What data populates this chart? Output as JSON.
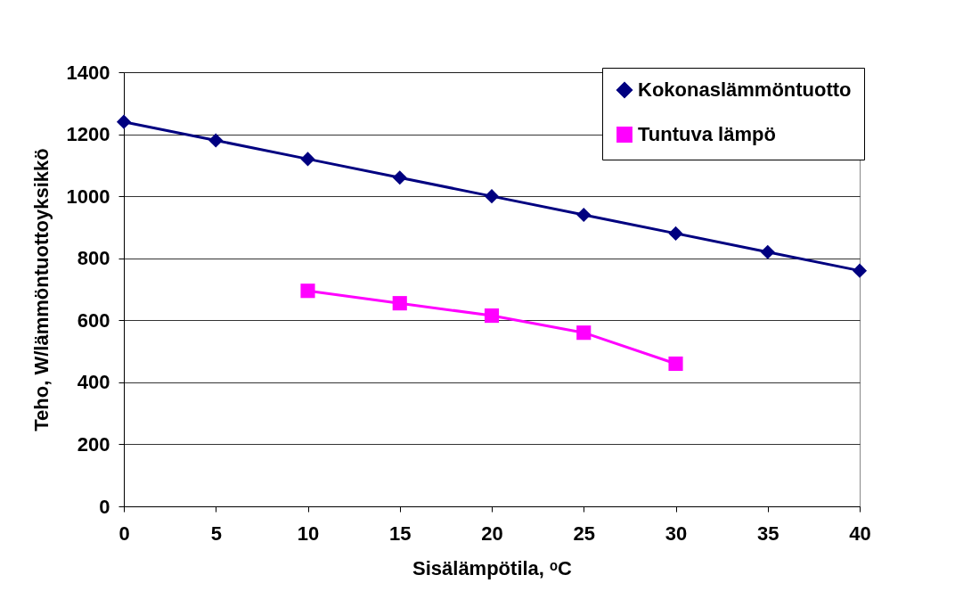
{
  "chart_data": {
    "type": "line",
    "xlabel": "Sisälämpötila, ᵒC",
    "ylabel": "Teho, W/lämmöntuottoyksikkö",
    "xlim": [
      0,
      40
    ],
    "xticks": [
      0,
      5,
      10,
      15,
      20,
      25,
      30,
      35,
      40
    ],
    "ylim": [
      0,
      1400
    ],
    "yticks": [
      0,
      200,
      400,
      600,
      800,
      1000,
      1200,
      1400
    ],
    "grid": "y",
    "legend": "top right",
    "line_style": "solid",
    "series": [
      {
        "name": "Kokonaslämmöntuotto",
        "color": "#000080",
        "marker": "diamond",
        "x": [
          0,
          5,
          10,
          15,
          20,
          25,
          30,
          35,
          40
        ],
        "values": [
          1240,
          1180,
          1120,
          1060,
          1000,
          940,
          880,
          820,
          760
        ]
      },
      {
        "name": "Tuntuva lämpö",
        "color": "#ff00ff",
        "marker": "square",
        "x": [
          10,
          15,
          20,
          25,
          30
        ],
        "values": [
          695,
          655,
          615,
          560,
          460
        ]
      }
    ]
  }
}
